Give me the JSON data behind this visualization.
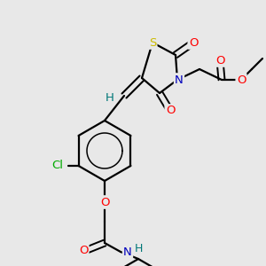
{
  "bg_color": "#e8e8e8",
  "atom_colors": {
    "O": "#ff0000",
    "N": "#0000bb",
    "S": "#ccbb00",
    "Cl": "#00aa00",
    "H": "#007777",
    "C": "#000000"
  },
  "bond_color": "#000000",
  "figsize": [
    3.0,
    3.0
  ],
  "dpi": 100
}
